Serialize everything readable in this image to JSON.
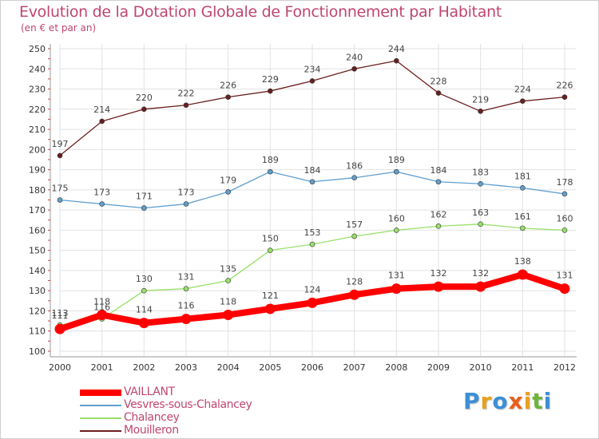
{
  "header": {
    "title": "Evolution de la Dotation Globale de Fonctionnement par Habitant",
    "subtitle": "(en € et par an)"
  },
  "chart_data": {
    "type": "line",
    "title": "Evolution de la Dotation Globale de Fonctionnement par Habitant",
    "subtitle": "(en € et par an)",
    "xlabel": "",
    "ylabel": "",
    "x": [
      "2000",
      "2001",
      "2002",
      "2003",
      "2004",
      "2005",
      "2006",
      "2007",
      "2008",
      "2009",
      "2010",
      "2011",
      "2012"
    ],
    "ylim": [
      100,
      250
    ],
    "yticks": [
      100,
      110,
      120,
      130,
      140,
      150,
      160,
      170,
      180,
      190,
      200,
      210,
      220,
      230,
      240,
      250
    ],
    "grid": true,
    "legend_position": "bottom-left",
    "series": [
      {
        "name": "VAILLANT",
        "color": "#ff0000",
        "values": [
          111,
          118,
          114,
          116,
          118,
          121,
          124,
          128,
          131,
          132,
          132,
          138,
          131
        ]
      },
      {
        "name": "Vesvres-sous-Chalancey",
        "color": "#5f9fd0",
        "values": [
          175,
          173,
          171,
          173,
          179,
          189,
          184,
          186,
          189,
          184,
          183,
          181,
          178
        ]
      },
      {
        "name": "Chalancey",
        "color": "#99e068",
        "values": [
          113,
          116,
          130,
          131,
          135,
          150,
          153,
          157,
          160,
          162,
          163,
          161,
          160
        ]
      },
      {
        "name": "Mouilleron",
        "color": "#6b1e1e",
        "values": [
          197,
          214,
          220,
          222,
          226,
          229,
          234,
          240,
          244,
          228,
          219,
          224,
          226
        ]
      }
    ]
  },
  "legend": [
    {
      "label": "VAILLANT",
      "color": "#ff0000"
    },
    {
      "label": "Vesvres-sous-Chalancey",
      "color": "#5f9fd0"
    },
    {
      "label": "Chalancey",
      "color": "#99e068"
    },
    {
      "label": "Mouilleron",
      "color": "#6b1e1e"
    }
  ],
  "logo": {
    "text": "Proxiti",
    "letters": [
      {
        "ch": "P",
        "color": "#3c8fd6"
      },
      {
        "ch": "r",
        "color": "#e8a020"
      },
      {
        "ch": "o",
        "color": "#3c8fd6"
      },
      {
        "ch": "x",
        "color": "#e8601c"
      },
      {
        "ch": "i",
        "color": "#e8a020"
      },
      {
        "ch": "t",
        "color": "#6cb43c"
      },
      {
        "ch": "i",
        "color": "#3c8fd6"
      }
    ]
  }
}
